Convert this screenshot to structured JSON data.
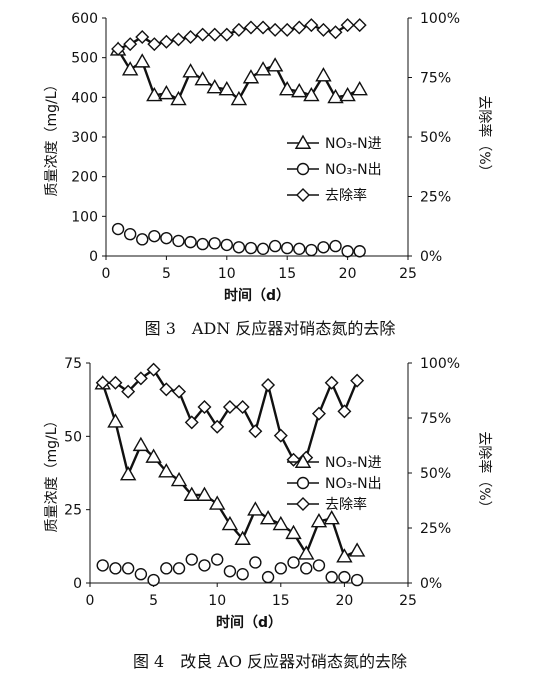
{
  "chart_data": [
    {
      "type": "line",
      "figure": "fig3",
      "caption": "图 3　ADN 反应器对硝态氮的去除",
      "xlabel": "时间（d）",
      "ylabel": "质量浓度（mg/L）",
      "y2label": "去除率（%）",
      "xlim": [
        0,
        25
      ],
      "ylim": [
        0,
        600
      ],
      "y2lim": [
        0,
        100
      ],
      "xticks": [
        "0",
        "5",
        "10",
        "15",
        "20",
        "25"
      ],
      "yticks": [
        "0",
        "100",
        "200",
        "300",
        "400",
        "500",
        "600"
      ],
      "y2ticks": [
        "0%",
        "25%",
        "50%",
        "75%",
        "100%"
      ],
      "grid": false,
      "legend_position": "center-right",
      "series": [
        {
          "name": "NO₃-N进",
          "marker": "triangle",
          "axis": "left",
          "line": true,
          "x": [
            1,
            2,
            3,
            4,
            5,
            6,
            7,
            8,
            9,
            10,
            11,
            12,
            13,
            14,
            15,
            16,
            17,
            18,
            19,
            20,
            21
          ],
          "y": [
            520,
            470,
            490,
            405,
            410,
            395,
            465,
            445,
            425,
            420,
            395,
            450,
            470,
            480,
            420,
            415,
            405,
            455,
            400,
            405,
            420
          ]
        },
        {
          "name": "NO₃-N出",
          "marker": "circle",
          "axis": "left",
          "line": false,
          "x": [
            1,
            2,
            3,
            4,
            5,
            6,
            7,
            8,
            9,
            10,
            11,
            12,
            13,
            14,
            15,
            16,
            17,
            18,
            19,
            20,
            21
          ],
          "y": [
            68,
            55,
            42,
            50,
            45,
            38,
            35,
            30,
            32,
            28,
            22,
            20,
            18,
            25,
            20,
            18,
            15,
            22,
            25,
            12,
            12
          ]
        },
        {
          "name": "去除率",
          "marker": "diamond",
          "axis": "right",
          "line": true,
          "x": [
            1,
            2,
            3,
            4,
            5,
            6,
            7,
            8,
            9,
            10,
            11,
            12,
            13,
            14,
            15,
            16,
            17,
            18,
            19,
            20,
            21
          ],
          "y": [
            87,
            89,
            92,
            89,
            90,
            91,
            92,
            93,
            93,
            93,
            95,
            96,
            96,
            95,
            95,
            96,
            97,
            95,
            94,
            97,
            97
          ]
        }
      ]
    },
    {
      "type": "line",
      "figure": "fig4",
      "caption": "图 4　改良 AO 反应器对硝态氮的去除",
      "xlabel": "时间（d）",
      "ylabel": "质量浓度（mg/L）",
      "y2label": "去除率（%）",
      "xlim": [
        0,
        25
      ],
      "ylim": [
        0,
        75
      ],
      "y2lim": [
        0,
        100
      ],
      "xticks": [
        "0",
        "5",
        "10",
        "15",
        "20",
        "25"
      ],
      "yticks": [
        "0",
        "25",
        "50",
        "75"
      ],
      "y2ticks": [
        "0%",
        "25%",
        "50%",
        "75%",
        "100%"
      ],
      "grid": false,
      "legend_position": "center-right",
      "series": [
        {
          "name": "NO₃-N进",
          "marker": "triangle",
          "axis": "left",
          "line": true,
          "x": [
            1,
            2,
            3,
            4,
            5,
            6,
            7,
            8,
            9,
            10,
            11,
            12,
            13,
            14,
            15,
            16,
            17,
            18,
            19,
            20,
            21
          ],
          "y": [
            68,
            55,
            37,
            47,
            43,
            38,
            35,
            30,
            30,
            27,
            20,
            15,
            25,
            22,
            20,
            17,
            10,
            21,
            22,
            9,
            11
          ]
        },
        {
          "name": "NO₃-N出",
          "marker": "circle",
          "axis": "left",
          "line": false,
          "x": [
            1,
            2,
            3,
            4,
            5,
            6,
            7,
            8,
            9,
            10,
            11,
            12,
            13,
            14,
            15,
            16,
            17,
            18,
            19,
            20,
            21
          ],
          "y": [
            6,
            5,
            5,
            3,
            1,
            5,
            5,
            8,
            6,
            8,
            4,
            3,
            7,
            2,
            5,
            7,
            5,
            6,
            2,
            2,
            1
          ]
        },
        {
          "name": "去除率",
          "marker": "diamond",
          "axis": "right",
          "line": true,
          "x": [
            1,
            2,
            3,
            4,
            5,
            6,
            7,
            8,
            9,
            10,
            11,
            12,
            13,
            14,
            15,
            16,
            17,
            18,
            19,
            20,
            21
          ],
          "y": [
            91,
            91,
            87,
            93,
            97,
            88,
            87,
            73,
            80,
            71,
            80,
            80,
            69,
            90,
            67,
            56,
            57,
            77,
            91,
            78,
            92
          ]
        }
      ]
    }
  ]
}
